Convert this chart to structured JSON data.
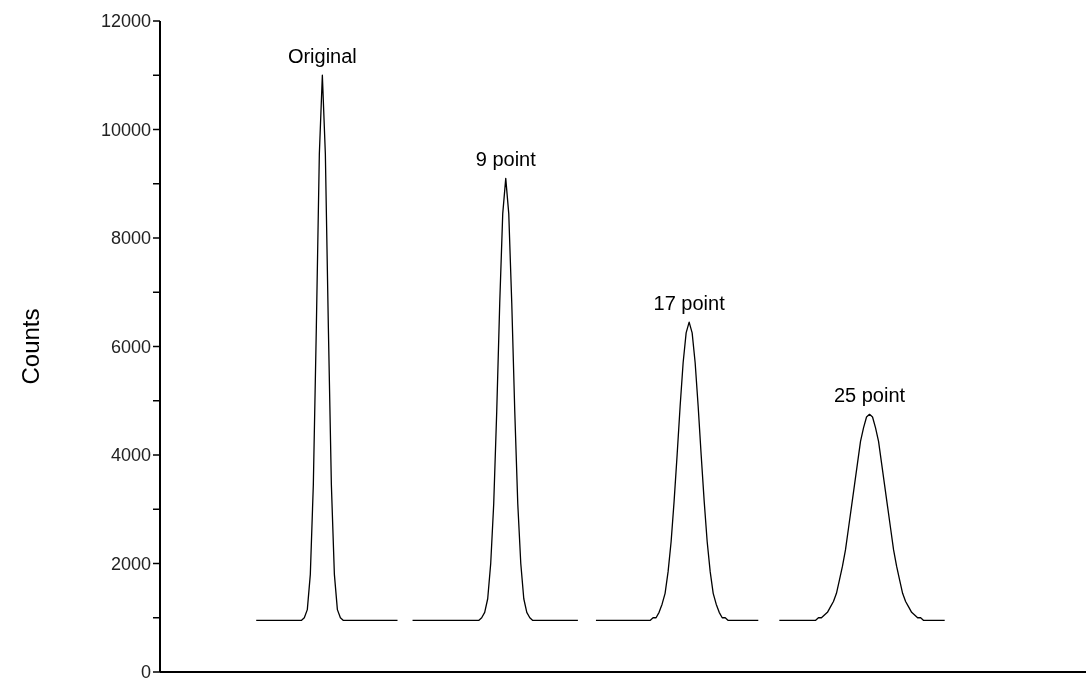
{
  "chart_data": {
    "type": "line",
    "ylabel": "Counts",
    "ylim": [
      0,
      12000
    ],
    "yticks": [
      0,
      {
        "value": 1000,
        "label": null
      },
      2000,
      {
        "value": 3000,
        "label": null
      },
      4000,
      {
        "value": 5000,
        "label": null
      },
      6000,
      {
        "value": 7000,
        "label": null
      },
      8000,
      {
        "value": 9000,
        "label": null
      },
      10000,
      {
        "value": 11000,
        "label": null
      },
      12000
    ],
    "tick_labels": "y",
    "categories": [
      null,
      null,
      null,
      null,
      null,
      null,
      null,
      null,
      null,
      null,
      null,
      null,
      null,
      null,
      null,
      null,
      null,
      null,
      null,
      null,
      null,
      null,
      null,
      null,
      null,
      null,
      null,
      null,
      null,
      null,
      null,
      null,
      null,
      null,
      null,
      null,
      null,
      null,
      null,
      null,
      null,
      null,
      null,
      null,
      null,
      null,
      null,
      null,
      null,
      null,
      null,
      null,
      null,
      null,
      null,
      null,
      null,
      null,
      null,
      null,
      null,
      null,
      null,
      null,
      null,
      null,
      null,
      null,
      null,
      null,
      null,
      null,
      null,
      null,
      null,
      null,
      null,
      null,
      null,
      null,
      null,
      null,
      null,
      null,
      null,
      null,
      null,
      null,
      null,
      null,
      null,
      null,
      null,
      null,
      null,
      null,
      null,
      null,
      null,
      null,
      null,
      null,
      null,
      null,
      null,
      null,
      null,
      null,
      null,
      null,
      null,
      null,
      null,
      null,
      null,
      null,
      null,
      null,
      null,
      null,
      null,
      null,
      null,
      null,
      null,
      null,
      null,
      null,
      null,
      null,
      null,
      null,
      null,
      null,
      null,
      null,
      null,
      null,
      null,
      null,
      null,
      null,
      null,
      null,
      null,
      null,
      null,
      null,
      null,
      null,
      null,
      null,
      null,
      null,
      null,
      null,
      null,
      null,
      null,
      null,
      null,
      null,
      null,
      null,
      null,
      null,
      null,
      null,
      null,
      null,
      null,
      null,
      null,
      null,
      null,
      null,
      null,
      null,
      null,
      null,
      null,
      null,
      null,
      null,
      null,
      null,
      null,
      null,
      null,
      null,
      null,
      null,
      null,
      null,
      null,
      null,
      null,
      null,
      null,
      null,
      null,
      null,
      null,
      null,
      null,
      null,
      null,
      null,
      null,
      null,
      null,
      null,
      null,
      null,
      null,
      null,
      null,
      null,
      null,
      null,
      null,
      null,
      null,
      null,
      null,
      null,
      null,
      null,
      null,
      null,
      null,
      null,
      null,
      null,
      null,
      null,
      null,
      null,
      null,
      null,
      null,
      null,
      null,
      null,
      null,
      null,
      null,
      null,
      null,
      null,
      null,
      null,
      null,
      null,
      null,
      null,
      null,
      null,
      null,
      null,
      null,
      null,
      null,
      null,
      null,
      null,
      null,
      null,
      null,
      null,
      null,
      null,
      null,
      null,
      null,
      null,
      null,
      null,
      null,
      null,
      null,
      null,
      null,
      null,
      null,
      null,
      null,
      null,
      null,
      null,
      null,
      null,
      null,
      null,
      null,
      null,
      null,
      null,
      null,
      null,
      null,
      null,
      null,
      null,
      null,
      null,
      null,
      null,
      null
    ],
    "series": [
      {
        "name": "Original",
        "color": "#000000",
        "values": [
          null,
          null,
          null,
          null,
          null,
          null,
          null,
          null,
          null,
          null,
          null,
          null,
          null,
          null,
          null,
          null,
          null,
          null,
          null,
          null,
          null,
          null,
          null,
          null,
          null,
          null,
          null,
          null,
          null,
          null,
          null,
          null,
          950,
          950,
          950,
          950,
          950,
          950,
          950,
          950,
          950,
          950,
          950,
          950,
          950,
          950,
          950,
          950,
          1000,
          1150,
          1800,
          3450,
          6350,
          9550,
          11000,
          9550,
          6350,
          3450,
          1800,
          1150,
          1000,
          950,
          950,
          950,
          950,
          950,
          950,
          950,
          950,
          950,
          950,
          950,
          950,
          950,
          950,
          950,
          950,
          950,
          950,
          950,
          null,
          null,
          null,
          null,
          null,
          null,
          null,
          null,
          null,
          null,
          null,
          null,
          null,
          null,
          null,
          null,
          null,
          null,
          null,
          null,
          null,
          null,
          null,
          null,
          null,
          null,
          null,
          null,
          null,
          null,
          null,
          null,
          null,
          null,
          null,
          null,
          null,
          null,
          null,
          null,
          null,
          null,
          null,
          null,
          null,
          null,
          null,
          null,
          null,
          null,
          null,
          null,
          null,
          null,
          null,
          null,
          null,
          null,
          null,
          null,
          null,
          null,
          null,
          null,
          null,
          null,
          null,
          null,
          null,
          null,
          null,
          null,
          null,
          null,
          null,
          null,
          null,
          null,
          null,
          null,
          null,
          null,
          null,
          null,
          null,
          null,
          null,
          null,
          null,
          null,
          null,
          null,
          null,
          null,
          null,
          null,
          null,
          null,
          null,
          null,
          null,
          null,
          null,
          null,
          null,
          null,
          null,
          null,
          null,
          null,
          null,
          null,
          null,
          null,
          null,
          null,
          null,
          null,
          null,
          null,
          null,
          null,
          null,
          null,
          null,
          null,
          null,
          null,
          null,
          null,
          null,
          null,
          null,
          null,
          null,
          null,
          null,
          null,
          null,
          null,
          null,
          null,
          null,
          null,
          null,
          null,
          null,
          null,
          null,
          null,
          null,
          null,
          null,
          null,
          null,
          null,
          null,
          null,
          null,
          null,
          null,
          null,
          null,
          null,
          null,
          null,
          null,
          null,
          null,
          null,
          null,
          null,
          null,
          null,
          null,
          null,
          null,
          null,
          null,
          null,
          null,
          null,
          null,
          null,
          null,
          null,
          null,
          null,
          null,
          null,
          null,
          null,
          null,
          null,
          null,
          null,
          null,
          null,
          null,
          null,
          null,
          null,
          null,
          null,
          null,
          null,
          null,
          null,
          null,
          null,
          null,
          null,
          null,
          null,
          null,
          null,
          null,
          null,
          null,
          null,
          null,
          null,
          null,
          null,
          null,
          null,
          null,
          null,
          null
        ]
      },
      {
        "name": "9 point",
        "color": "#000000",
        "values": [
          null,
          null,
          null,
          null,
          null,
          null,
          null,
          null,
          null,
          null,
          null,
          null,
          null,
          null,
          null,
          null,
          null,
          null,
          null,
          null,
          null,
          null,
          null,
          null,
          null,
          null,
          null,
          null,
          null,
          null,
          null,
          null,
          null,
          null,
          null,
          null,
          null,
          null,
          null,
          null,
          null,
          null,
          null,
          null,
          null,
          null,
          null,
          null,
          null,
          null,
          null,
          null,
          null,
          null,
          null,
          null,
          null,
          null,
          null,
          null,
          null,
          null,
          null,
          null,
          null,
          null,
          null,
          null,
          null,
          null,
          null,
          null,
          null,
          null,
          null,
          null,
          null,
          null,
          null,
          null,
          null,
          null,
          null,
          null,
          950,
          950,
          950,
          950,
          950,
          950,
          950,
          950,
          950,
          950,
          950,
          950,
          950,
          950,
          950,
          950,
          950,
          950,
          950,
          950,
          950,
          950,
          950,
          1000,
          1100,
          1350,
          2000,
          3100,
          4800,
          6800,
          8450,
          9100,
          8450,
          6800,
          4800,
          3100,
          2000,
          1350,
          1100,
          1000,
          950,
          950,
          950,
          950,
          950,
          950,
          950,
          950,
          950,
          950,
          950,
          950,
          950,
          950,
          950,
          950,
          null,
          null,
          null,
          null,
          null,
          null,
          null,
          null,
          null,
          null,
          null,
          null,
          null,
          null,
          null,
          null,
          null,
          null,
          null,
          null,
          null,
          null,
          null,
          null,
          null,
          null,
          null,
          null,
          null,
          null,
          null,
          null,
          null,
          null,
          null,
          null,
          null,
          null,
          null,
          null,
          null,
          null,
          null,
          null,
          null,
          null,
          null,
          null,
          null,
          null,
          null,
          null,
          null,
          null,
          null,
          null,
          null,
          null,
          null,
          null,
          null,
          null,
          null,
          null,
          null,
          null,
          null,
          null,
          null,
          null,
          null,
          null,
          null,
          null,
          null,
          null,
          null,
          null,
          null,
          null,
          null,
          null,
          null,
          null,
          null,
          null,
          null,
          null,
          null,
          null,
          null,
          null,
          null,
          null,
          null,
          null,
          null,
          null,
          null,
          null,
          null,
          null,
          null,
          null,
          null,
          null,
          null,
          null,
          null,
          null,
          null,
          null,
          null,
          null,
          null,
          null,
          null,
          null,
          null,
          null,
          null,
          null,
          null,
          null,
          null,
          null,
          null,
          null,
          null,
          null,
          null,
          null,
          null,
          null,
          null,
          null,
          null,
          null,
          null,
          null,
          null,
          null,
          null,
          null,
          null,
          null,
          null,
          null,
          null,
          null,
          null,
          null,
          null,
          null,
          null,
          null,
          null,
          null,
          null,
          null,
          null,
          null,
          null,
          null,
          null,
          null,
          null,
          null,
          null
        ]
      },
      {
        "name": "17 point",
        "color": "#000000",
        "values": [
          null,
          null,
          null,
          null,
          null,
          null,
          null,
          null,
          null,
          null,
          null,
          null,
          null,
          null,
          null,
          null,
          null,
          null,
          null,
          null,
          null,
          null,
          null,
          null,
          null,
          null,
          null,
          null,
          null,
          null,
          null,
          null,
          null,
          null,
          null,
          null,
          null,
          null,
          null,
          null,
          null,
          null,
          null,
          null,
          null,
          null,
          null,
          null,
          null,
          null,
          null,
          null,
          null,
          null,
          null,
          null,
          null,
          null,
          null,
          null,
          null,
          null,
          null,
          null,
          null,
          null,
          null,
          null,
          null,
          null,
          null,
          null,
          null,
          null,
          null,
          null,
          null,
          null,
          null,
          null,
          null,
          null,
          null,
          null,
          null,
          null,
          null,
          null,
          null,
          null,
          null,
          null,
          null,
          null,
          null,
          null,
          null,
          null,
          null,
          null,
          null,
          null,
          null,
          null,
          null,
          null,
          null,
          null,
          null,
          null,
          null,
          null,
          null,
          null,
          null,
          null,
          null,
          null,
          null,
          null,
          null,
          null,
          null,
          null,
          null,
          null,
          null,
          null,
          null,
          null,
          null,
          null,
          null,
          null,
          null,
          null,
          null,
          null,
          null,
          null,
          null,
          null,
          null,
          null,
          null,
          950,
          950,
          950,
          950,
          950,
          950,
          950,
          950,
          950,
          950,
          950,
          950,
          950,
          950,
          950,
          950,
          950,
          950,
          950,
          1000,
          1000,
          1100,
          1250,
          1450,
          1850,
          2400,
          3150,
          4000,
          4900,
          5700,
          6250,
          6450,
          6250,
          5700,
          4900,
          4000,
          3150,
          2400,
          1850,
          1450,
          1250,
          1100,
          1000,
          1000,
          950,
          950,
          950,
          950,
          950,
          950,
          950,
          950,
          950,
          950,
          950,
          null,
          null,
          null,
          null,
          null,
          null,
          null,
          null,
          null,
          null,
          null,
          null,
          null,
          null,
          null,
          null,
          null,
          null,
          null,
          null,
          null,
          null,
          null,
          null,
          null,
          null,
          null,
          null,
          null,
          null,
          null,
          null,
          null,
          null,
          null,
          null,
          null,
          null,
          null,
          null,
          null,
          null,
          null,
          null,
          null,
          null,
          null,
          null,
          null,
          null,
          null,
          null,
          null,
          null,
          null,
          null,
          null,
          null,
          null,
          null,
          null,
          null,
          null,
          null,
          null,
          null,
          null,
          null,
          null,
          null,
          null,
          null,
          null,
          null,
          null,
          null,
          null,
          null,
          null,
          null,
          null,
          null,
          null,
          null,
          null,
          null,
          null,
          null,
          null,
          null,
          null,
          null,
          null,
          null,
          null,
          null,
          null,
          null,
          null,
          null,
          null,
          null,
          null,
          null,
          null,
          null,
          null,
          null,
          null
        ]
      },
      {
        "name": "25 point",
        "color": "#000000",
        "values": [
          null,
          null,
          null,
          null,
          null,
          null,
          null,
          null,
          null,
          null,
          null,
          null,
          null,
          null,
          null,
          null,
          null,
          null,
          null,
          null,
          null,
          null,
          null,
          null,
          null,
          null,
          null,
          null,
          null,
          null,
          null,
          null,
          null,
          null,
          null,
          null,
          null,
          null,
          null,
          null,
          null,
          null,
          null,
          null,
          null,
          null,
          null,
          null,
          null,
          null,
          null,
          null,
          null,
          null,
          null,
          null,
          null,
          null,
          null,
          null,
          null,
          null,
          null,
          null,
          null,
          null,
          null,
          null,
          null,
          null,
          null,
          null,
          null,
          null,
          null,
          null,
          null,
          null,
          null,
          null,
          null,
          null,
          null,
          null,
          null,
          null,
          null,
          null,
          null,
          null,
          null,
          null,
          null,
          null,
          null,
          null,
          null,
          null,
          null,
          null,
          null,
          null,
          null,
          null,
          null,
          null,
          null,
          null,
          null,
          null,
          null,
          null,
          null,
          null,
          null,
          null,
          null,
          null,
          null,
          null,
          null,
          null,
          null,
          null,
          null,
          null,
          null,
          null,
          null,
          null,
          null,
          null,
          null,
          null,
          null,
          null,
          null,
          null,
          null,
          null,
          null,
          null,
          null,
          null,
          null,
          null,
          null,
          null,
          null,
          null,
          null,
          null,
          null,
          null,
          null,
          null,
          null,
          null,
          null,
          null,
          null,
          null,
          null,
          null,
          null,
          null,
          null,
          null,
          null,
          null,
          null,
          null,
          null,
          null,
          null,
          null,
          null,
          null,
          null,
          null,
          null,
          null,
          null,
          null,
          null,
          null,
          null,
          null,
          null,
          null,
          null,
          null,
          null,
          null,
          null,
          null,
          null,
          null,
          null,
          null,
          null,
          null,
          null,
          null,
          null,
          null,
          950,
          950,
          950,
          950,
          950,
          950,
          950,
          950,
          950,
          950,
          950,
          950,
          950,
          1000,
          1000,
          1050,
          1100,
          1200,
          1300,
          1450,
          1700,
          1950,
          2250,
          2650,
          3050,
          3450,
          3850,
          4250,
          4500,
          4700,
          4750,
          4700,
          4500,
          4250,
          3850,
          3450,
          3050,
          2650,
          2250,
          1950,
          1700,
          1450,
          1300,
          1200,
          1100,
          1050,
          1000,
          1000,
          950,
          950,
          950,
          950,
          950,
          950,
          950,
          950,
          null,
          null,
          null,
          null,
          null,
          null,
          null,
          null,
          null,
          null,
          null,
          null,
          null,
          null,
          null,
          null,
          null,
          null,
          null,
          null,
          null,
          null,
          null,
          null,
          null,
          null,
          null,
          null,
          null,
          null,
          null,
          null,
          null,
          null,
          null,
          null,
          null,
          null,
          null,
          null,
          null,
          null,
          null,
          null,
          null,
          null,
          null
        ]
      }
    ]
  }
}
